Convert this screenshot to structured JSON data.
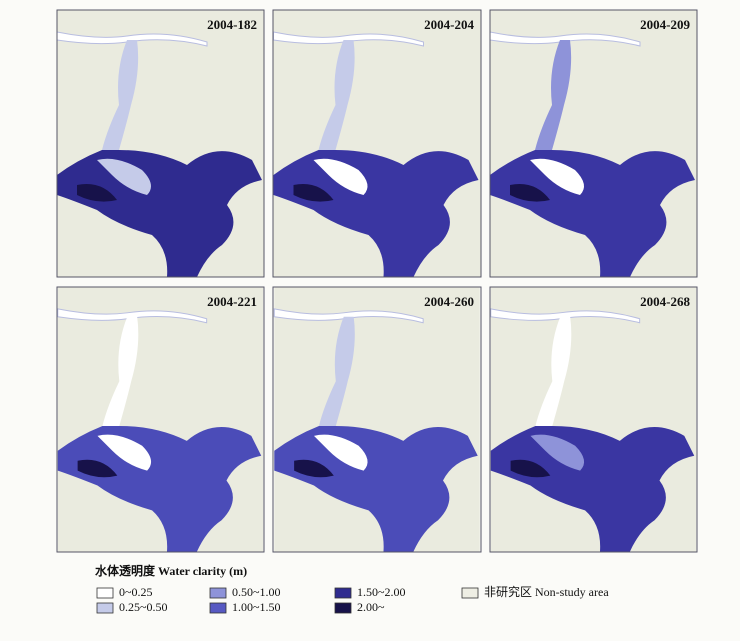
{
  "panels": [
    {
      "label": "2004-182"
    },
    {
      "label": "2004-204"
    },
    {
      "label": "2004-209"
    },
    {
      "label": "2004-221"
    },
    {
      "label": "2004-260"
    },
    {
      "label": "2004-268"
    }
  ],
  "legend": {
    "title": "水体透明度 Water clarity (m)",
    "items": [
      {
        "label": "0~0.25",
        "color": "#ffffff"
      },
      {
        "label": "0.25~0.50",
        "color": "#c5cbe9"
      },
      {
        "label": "0.50~1.00",
        "color": "#8e93d9"
      },
      {
        "label": "1.00~1.50",
        "color": "#5759c2"
      },
      {
        "label": "1.50~2.00",
        "color": "#2f2b8f"
      },
      {
        "label": "2.00~",
        "color": "#17124a"
      },
      {
        "label": "非研究区 Non-study area",
        "color": "#eeeee4"
      }
    ]
  }
}
